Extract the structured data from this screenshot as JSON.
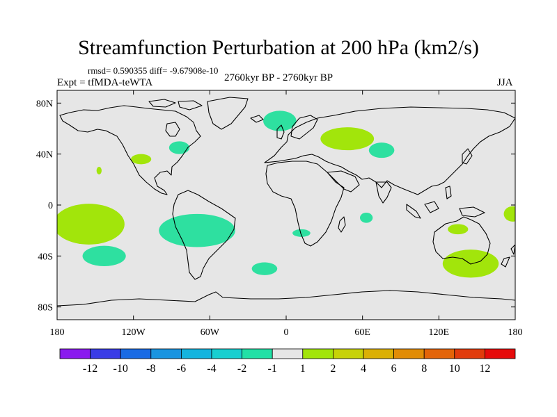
{
  "title": "Streamfunction Perturbation at 200 hPa (km2/s)",
  "stats": "rmsd= 0.590355 diff= -9.67908e-10",
  "experiment": "Expt = tfMDA-teWTA",
  "period": "2760kyr BP - 2760kyr BP",
  "season": "JJA",
  "map": {
    "lon_range": [
      -180,
      180
    ],
    "lat_range": [
      -90,
      90
    ],
    "background": "#e6e6e6",
    "lat_ticks": [
      {
        "lat": 80,
        "label": "80N"
      },
      {
        "lat": 40,
        "label": "40N"
      },
      {
        "lat": 0,
        "label": "0"
      },
      {
        "lat": -40,
        "label": "40S"
      },
      {
        "lat": -80,
        "label": "80S"
      }
    ],
    "lon_ticks": [
      {
        "lon": -180,
        "label": "180"
      },
      {
        "lon": -120,
        "label": "120W"
      },
      {
        "lon": -60,
        "label": "60W"
      },
      {
        "lon": 0,
        "label": "0"
      },
      {
        "lon": 60,
        "label": "60E"
      },
      {
        "lon": 120,
        "label": "120E"
      },
      {
        "lon": 180,
        "label": "180"
      }
    ]
  },
  "chart_data": {
    "type": "heatmap",
    "title": "Streamfunction Perturbation at 200 hPa (km2/s)",
    "units": "km2/s",
    "anomalies": [
      {
        "name": "north-atlantic-scandinavia",
        "lon": -5,
        "lat": 66,
        "dlon": 13,
        "dlat": 8,
        "level": "-2 to -1",
        "color": "#2ee0a0"
      },
      {
        "name": "great-lakes",
        "lon": -84,
        "lat": 45,
        "dlon": 8,
        "dlat": 5,
        "level": "-2 to -1",
        "color": "#2ee0a0"
      },
      {
        "name": "central-asia",
        "lon": 75,
        "lat": 43,
        "dlon": 10,
        "dlat": 6,
        "level": "-2 to -1",
        "color": "#2ee0a0"
      },
      {
        "name": "tropical-south-america",
        "lon": -70,
        "lat": -20,
        "dlon": 30,
        "dlat": 13,
        "level": "-2 to -1",
        "color": "#2ee0a0"
      },
      {
        "name": "south-pacific",
        "lon": -143,
        "lat": -40,
        "dlon": 17,
        "dlat": 8,
        "level": "-2 to -1",
        "color": "#2ee0a0"
      },
      {
        "name": "south-atlantic",
        "lon": -17,
        "lat": -50,
        "dlon": 10,
        "dlat": 5,
        "level": "-2 to -1",
        "color": "#2ee0a0"
      },
      {
        "name": "equatorial-indian-ocean",
        "lon": 63,
        "lat": -10,
        "dlon": 5,
        "dlat": 4,
        "level": "-2 to -1",
        "color": "#2ee0a0"
      },
      {
        "name": "south-africa",
        "lon": 12,
        "lat": -22,
        "dlon": 7,
        "dlat": 3,
        "level": "-2 to -1",
        "color": "#2ee0a0"
      },
      {
        "name": "east-pacific",
        "lon": -155,
        "lat": -15,
        "dlon": 28,
        "dlat": 16,
        "level": "1 to 2",
        "color": "#a2e50b"
      },
      {
        "name": "black-sea-caspian",
        "lon": 48,
        "lat": 52,
        "dlon": 21,
        "dlat": 9,
        "level": "1 to 2",
        "color": "#a2e50b"
      },
      {
        "name": "southwest-usa",
        "lon": -114,
        "lat": 36,
        "dlon": 8,
        "dlat": 4,
        "level": "1 to 2",
        "color": "#a2e50b"
      },
      {
        "name": "northeast-pacific-speck",
        "lon": -147,
        "lat": 27,
        "dlon": 2,
        "dlat": 3,
        "level": "1 to 2",
        "color": "#a2e50b"
      },
      {
        "name": "southeast-australia",
        "lon": 145,
        "lat": -46,
        "dlon": 22,
        "dlat": 11,
        "level": "1 to 2",
        "color": "#a2e50b"
      },
      {
        "name": "north-australia",
        "lon": 135,
        "lat": -19,
        "dlon": 8,
        "dlat": 4,
        "level": "1 to 2",
        "color": "#a2e50b"
      },
      {
        "name": "western-pacific-edge",
        "lon": 178,
        "lat": -7,
        "dlon": 7,
        "dlat": 6,
        "level": "1 to 2",
        "color": "#a2e50b"
      }
    ]
  },
  "colorbar": {
    "colors": [
      "#8a1aee",
      "#3a3ce6",
      "#1a6be4",
      "#1a94e0",
      "#14b4de",
      "#18cfd0",
      "#22e0a6",
      "#e6e6e6",
      "#a2e50b",
      "#c7d208",
      "#dbb005",
      "#e18c06",
      "#e36408",
      "#e13b0c",
      "#e60b0b"
    ],
    "labels": [
      "-12",
      "-10",
      "-8",
      "-6",
      "-4",
      "-2",
      "-1",
      "1",
      "2",
      "4",
      "6",
      "8",
      "10",
      "12"
    ]
  }
}
